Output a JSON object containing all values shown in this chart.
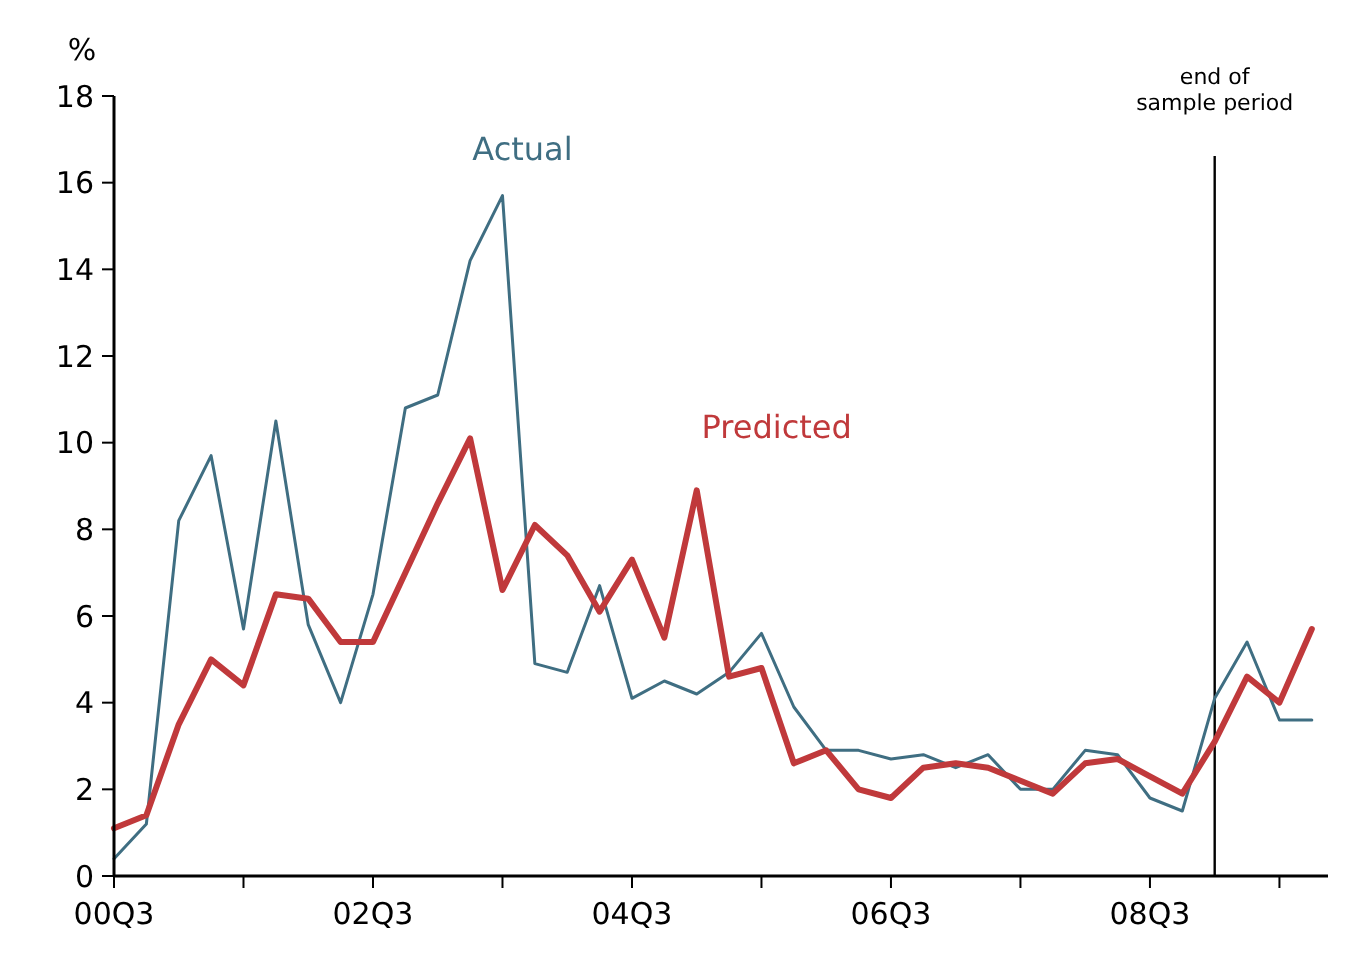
{
  "chart_data": {
    "type": "line",
    "ylabel": "%",
    "categories": [
      "00Q3",
      null,
      null,
      null,
      null,
      null,
      null,
      null,
      "02Q3",
      null,
      null,
      null,
      null,
      null,
      null,
      null,
      "04Q3",
      null,
      null,
      null,
      null,
      null,
      null,
      null,
      "06Q3",
      null,
      null,
      null,
      null,
      null,
      null,
      null,
      "08Q3",
      null,
      null,
      null,
      null,
      null
    ],
    "ylim": [
      0,
      18
    ],
    "yticks": [
      0,
      2,
      4,
      6,
      8,
      10,
      12,
      14,
      16,
      18
    ],
    "series": [
      {
        "name": "Actual",
        "color": "#3f6e82",
        "values": [
          0.4,
          1.2,
          8.2,
          9.7,
          5.7,
          10.5,
          5.8,
          4.0,
          6.5,
          10.8,
          11.1,
          14.2,
          15.7,
          4.9,
          4.7,
          6.7,
          4.1,
          4.5,
          4.2,
          4.7,
          5.6,
          3.9,
          2.9,
          2.9,
          2.7,
          2.8,
          2.5,
          2.8,
          2.0,
          2.0,
          2.9,
          2.8,
          1.8,
          1.5,
          4.1,
          5.4,
          3.6,
          3.6
        ]
      },
      {
        "name": "Predicted",
        "color": "#c0393b",
        "values": [
          1.1,
          1.4,
          3.5,
          5.0,
          4.4,
          6.5,
          6.4,
          5.4,
          5.4,
          7.0,
          8.6,
          10.1,
          6.6,
          8.1,
          7.4,
          6.1,
          7.3,
          5.5,
          8.9,
          4.6,
          4.8,
          2.6,
          2.9,
          2.0,
          1.8,
          2.5,
          2.6,
          2.5,
          2.2,
          1.9,
          2.6,
          2.7,
          2.3,
          1.9,
          3.1,
          4.6,
          4.0,
          5.7
        ]
      }
    ],
    "annotations": [
      "end of sample period"
    ],
    "marker": "none",
    "line_style": "solid"
  }
}
